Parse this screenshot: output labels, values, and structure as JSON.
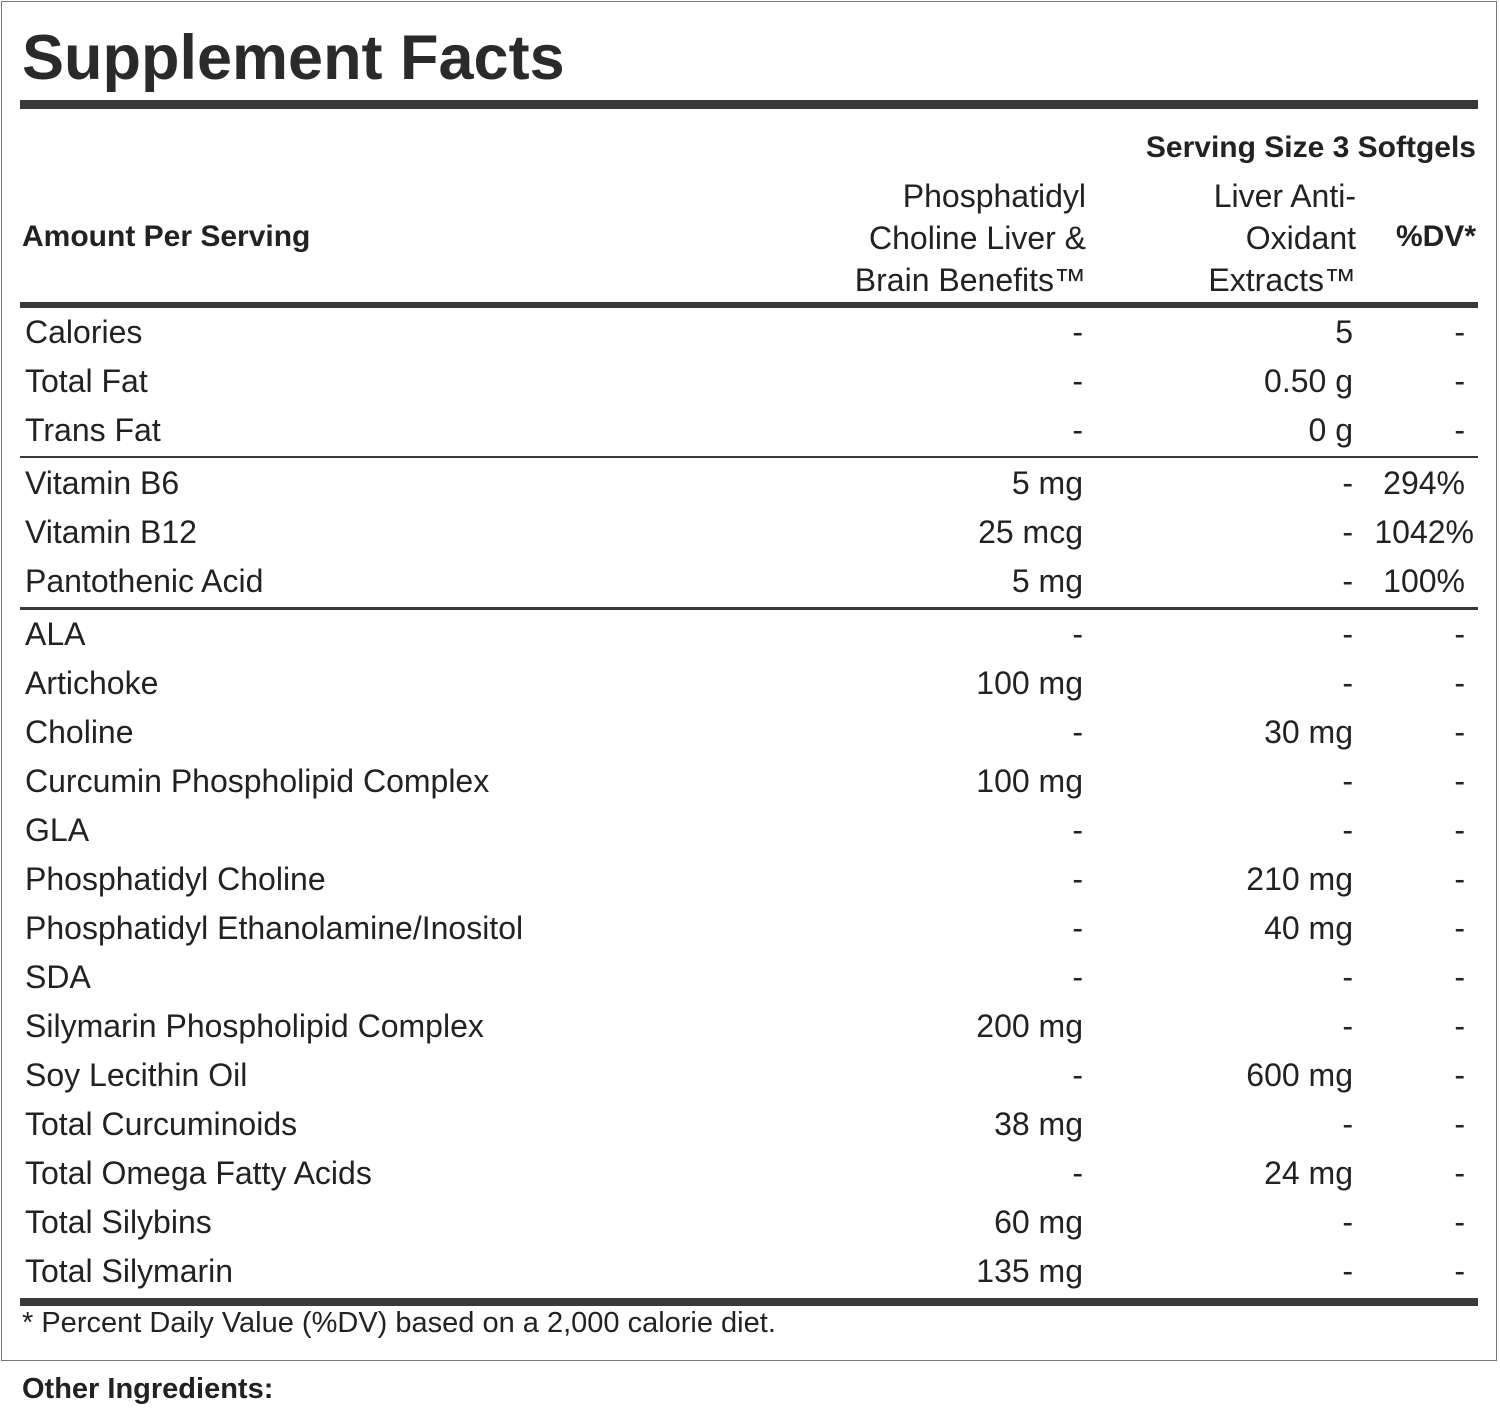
{
  "title": "Supplement Facts",
  "serving_size": "Serving Size 3 Softgels",
  "header": {
    "amount_per_serving": "Amount Per Serving",
    "col1": [
      "Phosphatidyl",
      "Choline Liver &",
      "Brain Benefits™"
    ],
    "col2": [
      "Liver Anti-",
      "Oxidant",
      "Extracts™"
    ],
    "dv": "%DV*"
  },
  "sections": [
    [
      {
        "name": "Calories",
        "col1": "-",
        "col2": "5",
        "dv": "-"
      },
      {
        "name": "Total Fat",
        "col1": "-",
        "col2": "0.50 g",
        "dv": "-"
      },
      {
        "name": "Trans Fat",
        "col1": "-",
        "col2": "0 g",
        "dv": "-"
      }
    ],
    [
      {
        "name": "Vitamin B6",
        "col1": "5 mg",
        "col2": "-",
        "dv": "294%"
      },
      {
        "name": "Vitamin B12",
        "col1": "25 mcg",
        "col2": "-",
        "dv": "1042%"
      },
      {
        "name": "Pantothenic Acid",
        "col1": "5 mg",
        "col2": "-",
        "dv": "100%"
      }
    ],
    [
      {
        "name": "ALA",
        "col1": "-",
        "col2": "-",
        "dv": "-"
      },
      {
        "name": "Artichoke",
        "col1": "100 mg",
        "col2": "-",
        "dv": "-"
      },
      {
        "name": "Choline",
        "col1": "-",
        "col2": "30 mg",
        "dv": "-"
      },
      {
        "name": "Curcumin Phospholipid Complex",
        "col1": "100 mg",
        "col2": "-",
        "dv": "-"
      },
      {
        "name": "GLA",
        "col1": "-",
        "col2": "-",
        "dv": "-"
      },
      {
        "name": "Phosphatidyl Choline",
        "col1": "-",
        "col2": "210 mg",
        "dv": "-"
      },
      {
        "name": "Phosphatidyl Ethanolamine/Inositol",
        "col1": "-",
        "col2": "40 mg",
        "dv": "-"
      },
      {
        "name": "SDA",
        "col1": "-",
        "col2": "-",
        "dv": "-"
      },
      {
        "name": "Silymarin Phospholipid Complex",
        "col1": "200 mg",
        "col2": "-",
        "dv": "-"
      },
      {
        "name": "Soy Lecithin Oil",
        "col1": "-",
        "col2": "600 mg",
        "dv": "-"
      },
      {
        "name": "Total Curcuminoids",
        "col1": "38 mg",
        "col2": "-",
        "dv": "-"
      },
      {
        "name": "Total Omega Fatty Acids",
        "col1": "-",
        "col2": "24 mg",
        "dv": "-"
      },
      {
        "name": "Total Silybins",
        "col1": "60 mg",
        "col2": "-",
        "dv": "-"
      },
      {
        "name": "Total Silymarin",
        "col1": "135 mg",
        "col2": "-",
        "dv": "-"
      }
    ]
  ],
  "footnote": "* Percent Daily Value (%DV) based on a 2,000 calorie diet.",
  "other_ingredients_label": "Other Ingredients:"
}
